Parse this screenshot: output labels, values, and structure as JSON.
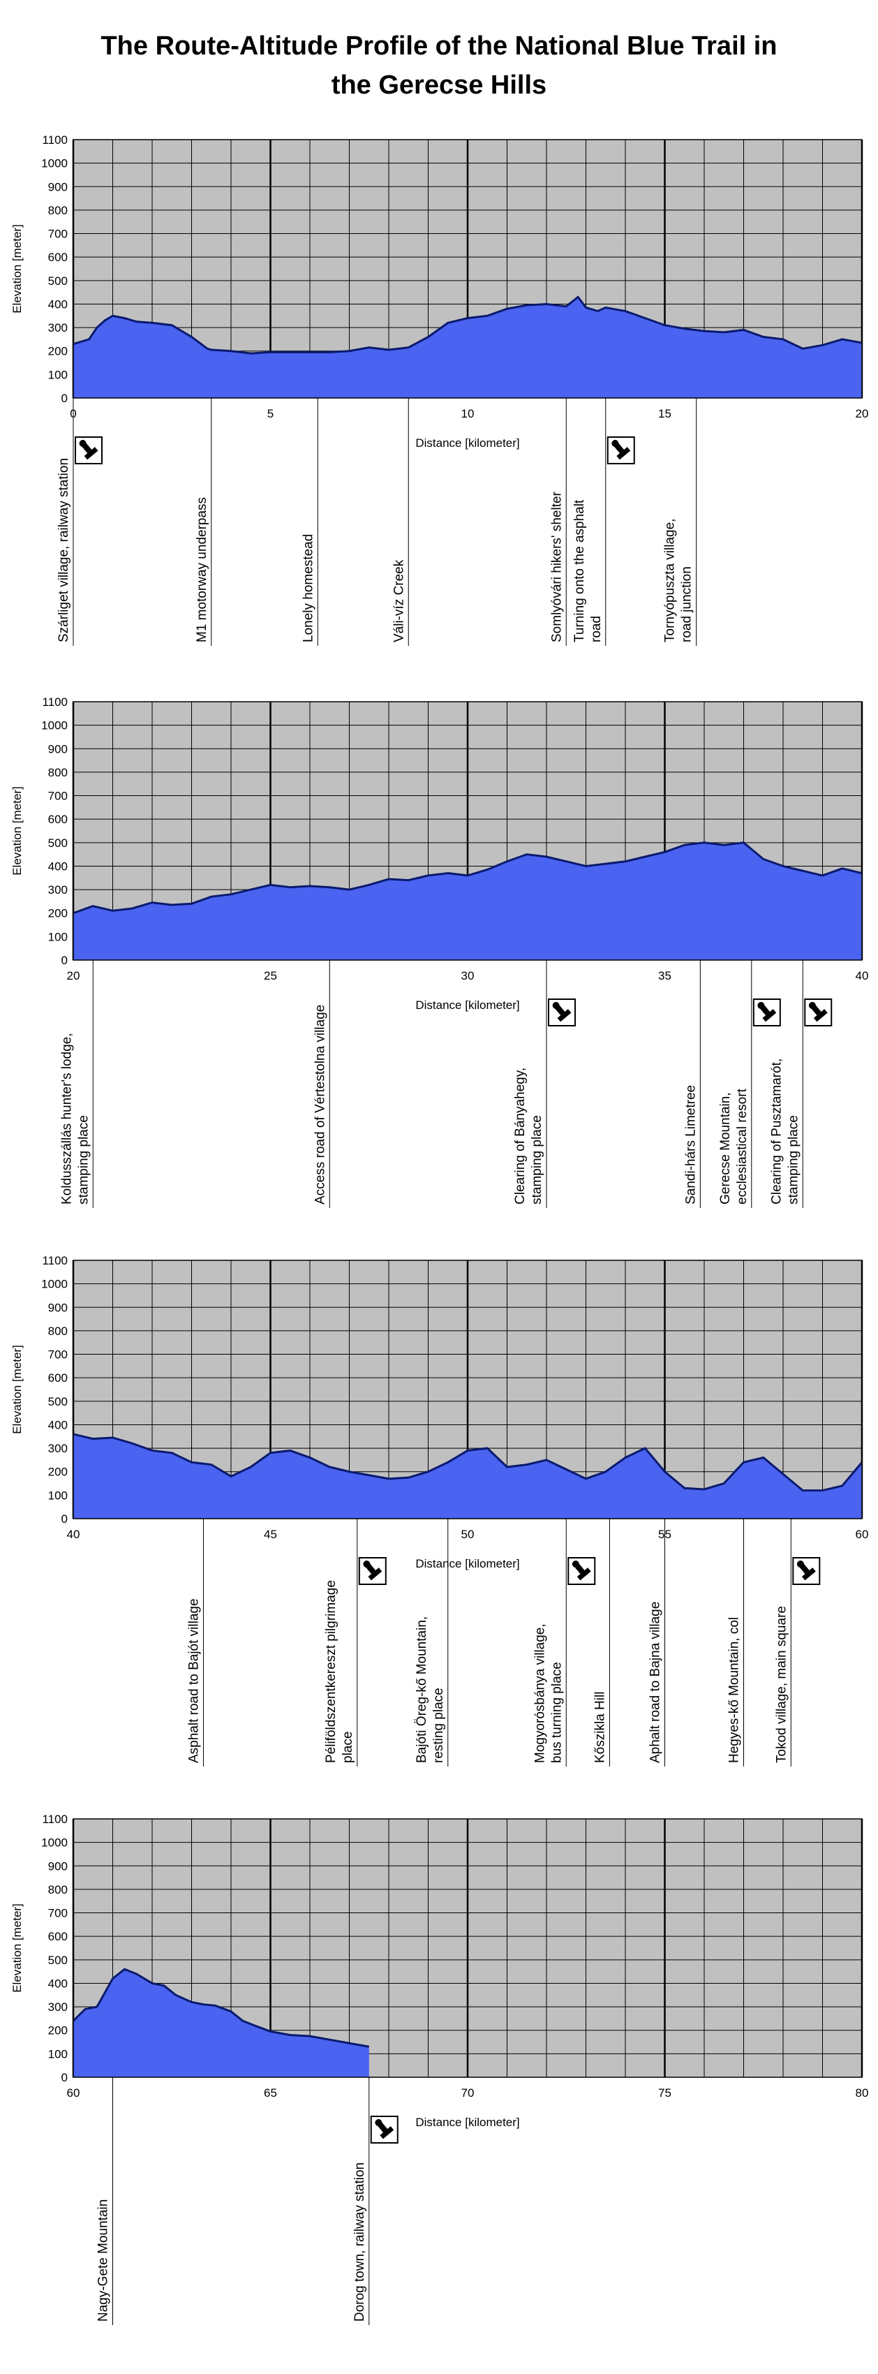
{
  "title": "The Route-Altitude Profile of the National Blue Trail in\nthe Gerecse Hills",
  "colors": {
    "plot_bg": "#c0c0c0",
    "fill": "#4a63f0",
    "line": "#0a1a6e",
    "grid": "#000000"
  },
  "stamp_icon": "stamping-place-icon",
  "chart_data": [
    {
      "type": "area",
      "xlabel": "Distance [kilometer]",
      "ylabel": "Elevation [meter]",
      "xlim": [
        0,
        20
      ],
      "ylim": [
        0,
        1100
      ],
      "xticks": [
        0,
        5,
        10,
        15,
        20
      ],
      "yticks": [
        0,
        100,
        200,
        300,
        400,
        500,
        600,
        700,
        800,
        900,
        1000,
        1100
      ],
      "grid": true,
      "series": [
        {
          "x": [
            0,
            0.4,
            0.6,
            0.8,
            1.0,
            1.3,
            1.6,
            2.0,
            2.5,
            3.0,
            3.4,
            3.5,
            4.0,
            4.5,
            5.0,
            5.5,
            6.0,
            6.5,
            7.0,
            7.5,
            8.0,
            8.5,
            9.0,
            9.5,
            10.0,
            10.5,
            11.0,
            11.5,
            12.0,
            12.5,
            12.8,
            13.0,
            13.3,
            13.5,
            14.0,
            14.5,
            15.0,
            15.5,
            16.0,
            16.5,
            17.0,
            17.5,
            18.0,
            18.5,
            19.0,
            19.5,
            20.0
          ],
          "y": [
            230,
            250,
            300,
            330,
            350,
            340,
            325,
            320,
            310,
            260,
            210,
            205,
            200,
            190,
            195,
            195,
            195,
            195,
            200,
            215,
            205,
            215,
            260,
            320,
            340,
            350,
            380,
            395,
            400,
            390,
            430,
            385,
            370,
            385,
            370,
            340,
            310,
            295,
            285,
            280,
            290,
            260,
            250,
            210,
            225,
            250,
            235
          ]
        }
      ],
      "annotations": [
        {
          "x": 0.0,
          "text": "Szárliget village, railway station",
          "stamp": true
        },
        {
          "x": 3.5,
          "text": "M1 motorway underpass",
          "stamp": false
        },
        {
          "x": 6.2,
          "text": "Lonely homestead",
          "stamp": false
        },
        {
          "x": 8.5,
          "text": "Váli-víz Creek",
          "stamp": false
        },
        {
          "x": 12.5,
          "text": "Somlyóvári hikers' shelter",
          "stamp": false
        },
        {
          "x": 13.5,
          "text": "Turning onto the asphalt\nroad",
          "stamp": true
        },
        {
          "x": 15.8,
          "text": "Tornyópuszta village,\nroad junction",
          "stamp": false
        }
      ]
    },
    {
      "type": "area",
      "xlabel": "Distance [kilometer]",
      "ylabel": "Elevation [meter]",
      "xlim": [
        20,
        40
      ],
      "ylim": [
        0,
        1100
      ],
      "xticks": [
        20,
        25,
        30,
        35,
        40
      ],
      "yticks": [
        0,
        100,
        200,
        300,
        400,
        500,
        600,
        700,
        800,
        900,
        1000,
        1100
      ],
      "grid": true,
      "series": [
        {
          "x": [
            20,
            20.5,
            21,
            21.5,
            22,
            22.5,
            23,
            23.5,
            24,
            24.5,
            25,
            25.5,
            26,
            26.5,
            27,
            27.5,
            28,
            28.5,
            29,
            29.5,
            30,
            30.5,
            31,
            31.5,
            32,
            32.5,
            33,
            33.5,
            34,
            34.5,
            35,
            35.5,
            36,
            36.5,
            37,
            37.5,
            38,
            38.5,
            39,
            39.5,
            40
          ],
          "y": [
            200,
            230,
            210,
            220,
            245,
            235,
            240,
            270,
            280,
            300,
            320,
            310,
            315,
            310,
            300,
            320,
            345,
            340,
            360,
            370,
            360,
            385,
            420,
            450,
            440,
            420,
            400,
            410,
            420,
            440,
            460,
            490,
            500,
            490,
            500,
            430,
            400,
            380,
            360,
            390,
            370
          ]
        }
      ],
      "annotations": [
        {
          "x": 20.5,
          "text": "Koldusszállás hunter's lodge,\nstamping place",
          "stamp": false
        },
        {
          "x": 26.5,
          "text": "Access road of Vértestolna village",
          "stamp": false
        },
        {
          "x": 32.0,
          "text": "Clearing of Bányahegy,\nstamping place",
          "stamp": true
        },
        {
          "x": 35.9,
          "text": "Sandi-hárs Limetree",
          "stamp": false
        },
        {
          "x": 37.2,
          "text": "Gerecse Mountain,\necclesiastical resort",
          "stamp": true
        },
        {
          "x": 38.5,
          "text": "Clearing of Pusztamarót,\nstamping place",
          "stamp": true
        }
      ]
    },
    {
      "type": "area",
      "xlabel": "Distance [kilometer]",
      "ylabel": "Elevation [meter]",
      "xlim": [
        40,
        60
      ],
      "ylim": [
        0,
        1100
      ],
      "xticks": [
        40,
        45,
        50,
        55,
        60
      ],
      "yticks": [
        0,
        100,
        200,
        300,
        400,
        500,
        600,
        700,
        800,
        900,
        1000,
        1100
      ],
      "grid": true,
      "series": [
        {
          "x": [
            40,
            40.5,
            41,
            41.5,
            42,
            42.5,
            43,
            43.5,
            44,
            44.5,
            45,
            45.5,
            46,
            46.5,
            47,
            47.5,
            48,
            48.5,
            49,
            49.5,
            50,
            50.5,
            51,
            51.5,
            52,
            52.5,
            53,
            53.5,
            54,
            54.5,
            55,
            55.5,
            56,
            56.5,
            57,
            57.5,
            58,
            58.5,
            59,
            59.5,
            60
          ],
          "y": [
            360,
            340,
            345,
            320,
            290,
            280,
            240,
            230,
            180,
            220,
            280,
            290,
            260,
            220,
            200,
            185,
            170,
            175,
            200,
            240,
            290,
            300,
            220,
            230,
            250,
            210,
            170,
            200,
            260,
            300,
            200,
            130,
            125,
            150,
            240,
            260,
            190,
            120,
            120,
            140,
            240
          ]
        }
      ],
      "annotations": [
        {
          "x": 43.3,
          "text": "Asphalt road to Bajót village",
          "stamp": false
        },
        {
          "x": 47.2,
          "text": "Péliföldszentkereszt pilgrimage\nplace",
          "stamp": true
        },
        {
          "x": 49.5,
          "text": "Bajóti Öreg-kő Mountain,\nresting place",
          "stamp": false
        },
        {
          "x": 52.5,
          "text": "Mogyorósbánya village,\nbus turning place",
          "stamp": true
        },
        {
          "x": 53.6,
          "text": "Kőszikla Hill",
          "stamp": false
        },
        {
          "x": 55.0,
          "text": "Aphalt road to Bajna village",
          "stamp": false
        },
        {
          "x": 57.0,
          "text": "Hegyes-kő Mountain, col",
          "stamp": false
        },
        {
          "x": 58.2,
          "text": "Tokod village, main square",
          "stamp": true
        }
      ]
    },
    {
      "type": "area",
      "xlabel": "Distance [kilometer]",
      "ylabel": "Elevation [meter]",
      "xlim": [
        60,
        80
      ],
      "ylim": [
        0,
        1100
      ],
      "xticks": [
        60,
        65,
        70,
        75,
        80
      ],
      "yticks": [
        0,
        100,
        200,
        300,
        400,
        500,
        600,
        700,
        800,
        900,
        1000,
        1100
      ],
      "grid": true,
      "series": [
        {
          "x": [
            60,
            60.3,
            60.6,
            61,
            61.3,
            61.6,
            62,
            62.3,
            62.6,
            63,
            63.3,
            63.6,
            64,
            64.3,
            64.6,
            65,
            65.5,
            66,
            66.5,
            67,
            67.5
          ],
          "y": [
            240,
            290,
            300,
            420,
            460,
            440,
            400,
            390,
            350,
            320,
            310,
            305,
            280,
            240,
            220,
            195,
            180,
            175,
            160,
            145,
            130
          ]
        }
      ],
      "annotations": [
        {
          "x": 61.0,
          "text": "Nagy-Gete Mountain",
          "stamp": false
        },
        {
          "x": 67.5,
          "text": "Dorog town, railway station",
          "stamp": true
        }
      ]
    }
  ]
}
